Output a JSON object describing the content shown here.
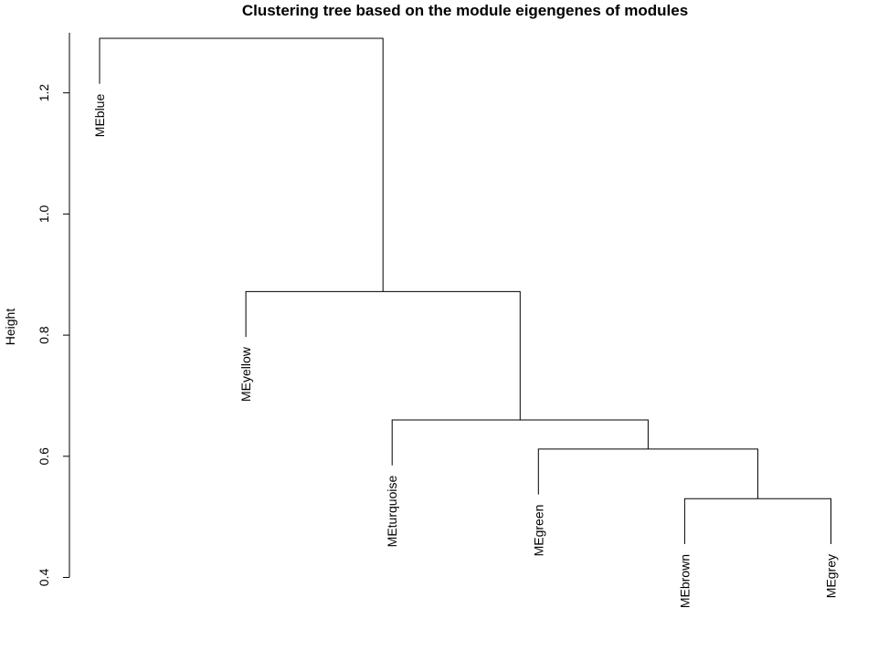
{
  "chart_data": {
    "type": "dendrogram",
    "title": "Clustering tree based on the module eigengenes of modules",
    "xlabel": "",
    "ylabel": "Height",
    "ylim": [
      0.4,
      1.3
    ],
    "yticks": [
      0.4,
      0.6,
      0.8,
      1.0,
      1.2
    ],
    "yticklabels": [
      "0.4",
      "0.6",
      "0.8",
      "1.0",
      "1.2"
    ],
    "hang_height": 0.075,
    "leaves": [
      {
        "label": "MEblue"
      },
      {
        "label": "MEyellow"
      },
      {
        "label": "MEturquoise"
      },
      {
        "label": "MEgreen"
      },
      {
        "label": "MEbrown"
      },
      {
        "label": "MEgrey"
      }
    ],
    "merges": [
      {
        "left": "leaf:4",
        "right": "leaf:5",
        "height": 0.53
      },
      {
        "left": "leaf:3",
        "right": "node:0",
        "height": 0.612
      },
      {
        "left": "leaf:2",
        "right": "node:1",
        "height": 0.66
      },
      {
        "left": "leaf:1",
        "right": "node:2",
        "height": 0.872
      },
      {
        "left": "leaf:0",
        "right": "node:3",
        "height": 1.29
      }
    ]
  }
}
